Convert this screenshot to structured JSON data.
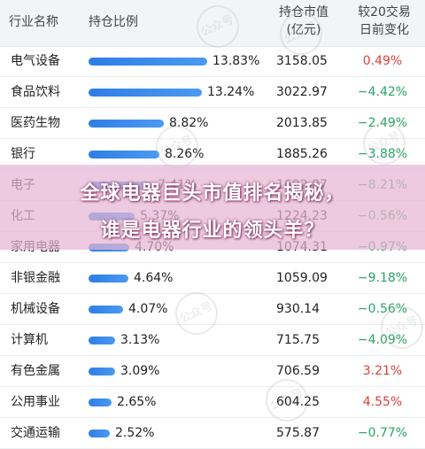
{
  "header": {
    "industry": "行业名称",
    "share": "持仓比例",
    "value_line1": "持仓市值",
    "value_line2": "(亿元)",
    "change_line1": "较20交易",
    "change_line2": "日前变化"
  },
  "rows": [
    {
      "name": "电气设备",
      "share": "13.83%",
      "share_num": 13.83,
      "value": "3158.05",
      "change": "0.49%",
      "dir": "up"
    },
    {
      "name": "食品饮料",
      "share": "13.24%",
      "share_num": 13.24,
      "value": "3022.97",
      "change": "−4.42%",
      "dir": "down"
    },
    {
      "name": "医药生物",
      "share": "8.82%",
      "share_num": 8.82,
      "value": "2013.85",
      "change": "−2.49%",
      "dir": "down"
    },
    {
      "name": "银行",
      "share": "8.26%",
      "share_num": 8.26,
      "value": "1885.26",
      "change": "−3.88%",
      "dir": "down"
    },
    {
      "name": "电子",
      "share": "7.41%",
      "share_num": 7.41,
      "value": "1692.87",
      "change": "−8.21%",
      "dir": "down"
    },
    {
      "name": "化工",
      "share": "5.37%",
      "share_num": 5.37,
      "value": "1224.23",
      "change": "−0.56%",
      "dir": "down"
    },
    {
      "name": "家用电器",
      "share": "4.70%",
      "share_num": 4.7,
      "value": "1074.31",
      "change": "−0.97%",
      "dir": "down"
    },
    {
      "name": "非银金融",
      "share": "4.64%",
      "share_num": 4.64,
      "value": "1059.09",
      "change": "−9.18%",
      "dir": "down"
    },
    {
      "name": "机械设备",
      "share": "4.07%",
      "share_num": 4.07,
      "value": "930.14",
      "change": "−0.56%",
      "dir": "down"
    },
    {
      "name": "计算机",
      "share": "3.13%",
      "share_num": 3.13,
      "value": "715.75",
      "change": "−4.09%",
      "dir": "down"
    },
    {
      "name": "有色金属",
      "share": "3.09%",
      "share_num": 3.09,
      "value": "706.59",
      "change": "3.21%",
      "dir": "up"
    },
    {
      "name": "公用事业",
      "share": "2.65%",
      "share_num": 2.65,
      "value": "604.25",
      "change": "4.55%",
      "dir": "up"
    },
    {
      "name": "交通运输",
      "share": "2.52%",
      "share_num": 2.52,
      "value": "575.87",
      "change": "−0.77%",
      "dir": "down"
    }
  ],
  "overlay": {
    "line1": "全球电器巨头市值排名揭秘，",
    "line2": "谁是电器行业的领头羊？"
  },
  "watermark": "公众号",
  "colors": {
    "up": "#e0403a",
    "down": "#2aa56a",
    "bar": "#3a8ae8",
    "banner": "#e8b6d4"
  }
}
